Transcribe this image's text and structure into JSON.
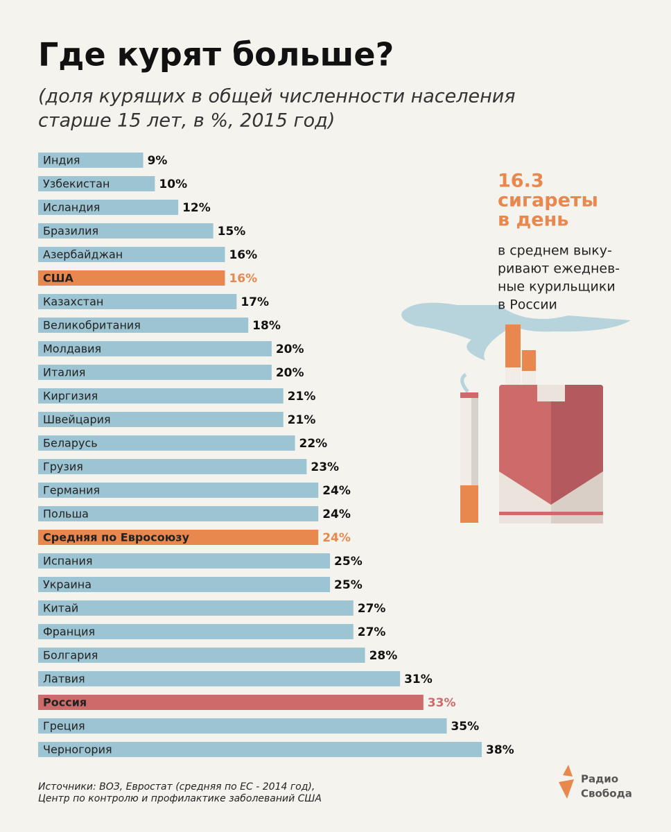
{
  "chart_data": {
    "type": "bar",
    "title": "Где курят больше?",
    "subtitle": [
      "(доля курящих в общей численности населения",
      "старше 15 лет, в %, 2015 год)"
    ],
    "categories": [
      "Индия",
      "Узбекистан",
      "Исландия",
      "Бразилия",
      "Азербайджан",
      "США",
      "Казахстан",
      "Великобритания",
      "Молдавия",
      "Италия",
      "Киргизия",
      "Швейцария",
      "Беларусь",
      "Грузия",
      "Германия",
      "Польша",
      "Средняя по Евросоюзу",
      "Испания",
      "Украина",
      "Китай",
      "Франция",
      "Болгария",
      "Латвия",
      "Россия",
      "Греция",
      "Черногория"
    ],
    "values": [
      9,
      10,
      12,
      15,
      16,
      16,
      17,
      18,
      20,
      20,
      21,
      21,
      22,
      23,
      24,
      24,
      24,
      25,
      25,
      27,
      27,
      28,
      31,
      33,
      35,
      38
    ],
    "value_labels": [
      "9%",
      "10%",
      "12%",
      "15%",
      "16%",
      "16%",
      "17%",
      "18%",
      "20%",
      "20%",
      "21%",
      "21%",
      "22%",
      "23%",
      "24%",
      "24%",
      "24%",
      "25%",
      "25%",
      "27%",
      "27%",
      "28%",
      "31%",
      "33%",
      "35%",
      "38%"
    ],
    "color": "#9dc4d2",
    "colors": [
      "#9dc4d2",
      "#9dc4d2",
      "#9dc4d2",
      "#9dc4d2",
      "#9dc4d2",
      "#e8874e",
      "#9dc4d2",
      "#9dc4d2",
      "#9dc4d2",
      "#9dc4d2",
      "#9dc4d2",
      "#9dc4d2",
      "#9dc4d2",
      "#9dc4d2",
      "#9dc4d2",
      "#9dc4d2",
      "#e8874e",
      "#9dc4d2",
      "#9dc4d2",
      "#9dc4d2",
      "#9dc4d2",
      "#9dc4d2",
      "#9dc4d2",
      "#cd6b6b",
      "#9dc4d2",
      "#9dc4d2"
    ],
    "xlim": [
      0,
      38
    ],
    "annotation": {
      "headline": [
        "16.3",
        "сигареты",
        "в день"
      ],
      "text": [
        "в среднем выку-",
        "ривают ежеднев-",
        "ные курильщики",
        "в России"
      ]
    },
    "source": [
      "Источники: ВОЗ, Евростат (средняя по ЕС - 2014 год),",
      "Центр по контролю и профилактике заболеваний США"
    ],
    "logo": [
      "Радио",
      "Свобода"
    ]
  }
}
